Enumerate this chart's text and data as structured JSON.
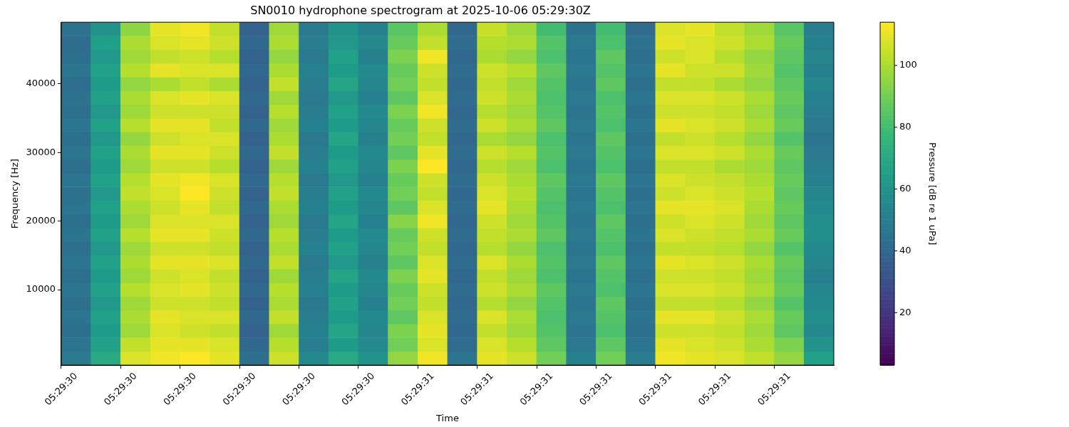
{
  "chart_data": {
    "type": "heatmap",
    "title": "SN0010 hydrophone spectrogram at 2025-10-06 05:29:30Z",
    "xlabel": "Time",
    "ylabel": "Frequency [Hz]",
    "clabel": "Pressure [dB re 1 uPa]",
    "clim": [
      3,
      114
    ],
    "cticks": [
      20,
      40,
      60,
      80,
      100
    ],
    "categories": [
      "05:29:30",
      null,
      "05:29:30",
      null,
      "05:29:30",
      null,
      "05:29:30",
      null,
      "05:29:30",
      null,
      "05:29:30",
      null,
      "05:29:31",
      null,
      "05:29:31",
      null,
      "05:29:31",
      null,
      "05:29:31",
      null,
      "05:29:31",
      null,
      "05:29:31",
      null,
      "05:29:31",
      null
    ],
    "y_categories": [
      null,
      null,
      null,
      null,
      "40000",
      null,
      null,
      null,
      null,
      "30000",
      null,
      null,
      null,
      null,
      "20000",
      null,
      null,
      null,
      null,
      "10000",
      null,
      null,
      null,
      null,
      null
    ],
    "cells": [
      [
        45,
        60,
        95,
        110,
        112,
        104,
        38,
        98,
        48,
        60,
        52,
        85,
        100,
        40,
        105,
        98,
        80,
        45,
        80,
        42,
        108,
        110,
        104,
        98,
        85,
        50
      ],
      [
        42,
        65,
        100,
        108,
        110,
        106,
        40,
        100,
        50,
        62,
        55,
        88,
        104,
        42,
        102,
        100,
        84,
        48,
        82,
        45,
        110,
        108,
        106,
        100,
        88,
        52
      ],
      [
        44,
        62,
        98,
        104,
        106,
        102,
        38,
        96,
        48,
        66,
        52,
        92,
        112,
        40,
        100,
        96,
        82,
        46,
        86,
        44,
        106,
        108,
        102,
        96,
        86,
        54
      ],
      [
        46,
        66,
        102,
        110,
        108,
        108,
        40,
        100,
        52,
        64,
        56,
        88,
        106,
        42,
        106,
        102,
        86,
        48,
        84,
        46,
        110,
        106,
        106,
        98,
        84,
        52
      ],
      [
        43,
        64,
        96,
        100,
        104,
        100,
        38,
        104,
        50,
        68,
        54,
        90,
        104,
        40,
        104,
        98,
        84,
        46,
        86,
        44,
        104,
        104,
        100,
        96,
        86,
        54
      ],
      [
        45,
        66,
        100,
        108,
        110,
        108,
        40,
        98,
        48,
        62,
        52,
        86,
        108,
        42,
        106,
        100,
        82,
        48,
        82,
        46,
        108,
        108,
        106,
        100,
        88,
        52
      ],
      [
        44,
        62,
        98,
        106,
        106,
        106,
        38,
        102,
        50,
        66,
        56,
        92,
        112,
        40,
        102,
        98,
        84,
        46,
        84,
        44,
        106,
        106,
        104,
        98,
        86,
        50
      ],
      [
        46,
        66,
        102,
        110,
        110,
        104,
        40,
        98,
        52,
        64,
        54,
        88,
        106,
        42,
        106,
        100,
        86,
        48,
        82,
        46,
        110,
        108,
        106,
        100,
        88,
        48
      ],
      [
        44,
        62,
        96,
        106,
        108,
        108,
        38,
        100,
        48,
        68,
        52,
        90,
        104,
        40,
        100,
        96,
        82,
        46,
        86,
        44,
        104,
        106,
        102,
        96,
        84,
        46
      ],
      [
        46,
        66,
        100,
        110,
        110,
        106,
        40,
        104,
        50,
        64,
        56,
        86,
        110,
        42,
        106,
        102,
        84,
        48,
        84,
        46,
        108,
        108,
        106,
        100,
        88,
        48
      ],
      [
        44,
        64,
        98,
        106,
        106,
        102,
        38,
        98,
        52,
        66,
        54,
        92,
        114,
        40,
        102,
        98,
        82,
        46,
        82,
        44,
        104,
        104,
        100,
        98,
        86,
        50
      ],
      [
        46,
        66,
        102,
        110,
        112,
        108,
        40,
        102,
        48,
        62,
        52,
        88,
        106,
        42,
        106,
        100,
        86,
        48,
        86,
        46,
        108,
        106,
        104,
        100,
        88,
        52
      ],
      [
        45,
        62,
        104,
        108,
        114,
        106,
        38,
        104,
        50,
        66,
        56,
        90,
        104,
        40,
        108,
        102,
        84,
        46,
        84,
        44,
        106,
        108,
        106,
        102,
        86,
        54
      ],
      [
        46,
        66,
        100,
        106,
        110,
        104,
        40,
        100,
        52,
        64,
        54,
        86,
        108,
        42,
        110,
        100,
        82,
        48,
        82,
        46,
        110,
        110,
        108,
        100,
        88,
        56
      ],
      [
        44,
        64,
        98,
        108,
        108,
        108,
        38,
        98,
        48,
        68,
        52,
        94,
        112,
        40,
        106,
        98,
        84,
        46,
        86,
        44,
        106,
        108,
        106,
        98,
        86,
        58
      ],
      [
        46,
        66,
        102,
        110,
        110,
        106,
        40,
        102,
        50,
        64,
        56,
        88,
        106,
        42,
        104,
        100,
        86,
        48,
        84,
        46,
        108,
        106,
        104,
        100,
        88,
        58
      ],
      [
        44,
        62,
        98,
        106,
        106,
        104,
        38,
        100,
        52,
        66,
        54,
        90,
        104,
        40,
        102,
        96,
        82,
        46,
        82,
        44,
        104,
        104,
        102,
        96,
        84,
        56
      ],
      [
        46,
        66,
        100,
        110,
        110,
        108,
        40,
        104,
        48,
        62,
        52,
        86,
        108,
        42,
        108,
        100,
        84,
        48,
        86,
        46,
        110,
        108,
        106,
        100,
        88,
        54
      ],
      [
        44,
        64,
        98,
        106,
        108,
        104,
        38,
        98,
        50,
        68,
        56,
        92,
        110,
        40,
        104,
        98,
        82,
        46,
        84,
        44,
        106,
        106,
        104,
        98,
        86,
        52
      ],
      [
        46,
        66,
        102,
        108,
        110,
        106,
        40,
        102,
        52,
        64,
        54,
        88,
        106,
        42,
        106,
        100,
        86,
        48,
        82,
        46,
        108,
        108,
        106,
        100,
        88,
        54
      ],
      [
        44,
        62,
        98,
        106,
        106,
        104,
        38,
        100,
        48,
        66,
        52,
        90,
        104,
        40,
        102,
        96,
        84,
        46,
        86,
        44,
        104,
        104,
        102,
        96,
        84,
        56
      ],
      [
        46,
        66,
        100,
        110,
        108,
        108,
        40,
        104,
        50,
        64,
        56,
        86,
        108,
        42,
        108,
        100,
        82,
        48,
        84,
        46,
        110,
        110,
        106,
        100,
        88,
        58
      ],
      [
        44,
        64,
        98,
        108,
        106,
        104,
        38,
        98,
        52,
        68,
        54,
        92,
        110,
        40,
        104,
        98,
        84,
        46,
        82,
        44,
        106,
        106,
        104,
        98,
        86,
        56
      ],
      [
        46,
        66,
        104,
        110,
        110,
        108,
        40,
        102,
        50,
        64,
        56,
        90,
        108,
        42,
        108,
        102,
        86,
        48,
        86,
        46,
        110,
        108,
        106,
        100,
        92,
        60
      ],
      [
        48,
        70,
        108,
        112,
        114,
        110,
        44,
        106,
        56,
        70,
        60,
        96,
        112,
        46,
        110,
        106,
        90,
        52,
        90,
        50,
        112,
        110,
        108,
        104,
        96,
        66
      ]
    ]
  }
}
